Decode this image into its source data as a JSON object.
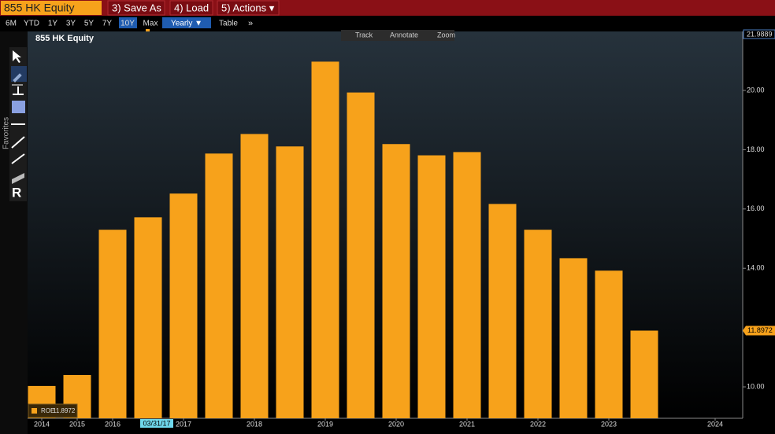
{
  "toolbar": {
    "ticker": "855 HK Equity",
    "buttons": [
      "3) Save As",
      "4) Load",
      "5) Actions ▾"
    ]
  },
  "periods": [
    "6M",
    "YTD",
    "1Y",
    "3Y",
    "5Y",
    "7Y",
    "10Y",
    "Max"
  ],
  "controls": {
    "frequency": "Yearly ▼",
    "table": "Table",
    "more": "»"
  },
  "chart_tools": [
    "Track",
    "Annotate",
    "Zoom"
  ],
  "side_panel": {
    "favorites": "Favorites",
    "tool_r": "R"
  },
  "cursor_date": "03/31/17",
  "chart_data": {
    "type": "bar",
    "title": "855 HK Equity",
    "categories": [
      "2014",
      "2015",
      "2016",
      null,
      "2017",
      null,
      "2018",
      null,
      "2019",
      null,
      "2020",
      null,
      "2021",
      null,
      "2022",
      null,
      "2023",
      null,
      null,
      "2024"
    ],
    "series": [
      {
        "name": "ROE",
        "color": "#f7a21b",
        "values": [
          10.03,
          10.4,
          15.3,
          15.72,
          16.52,
          17.87,
          18.53,
          18.11,
          20.97,
          19.93,
          18.19,
          17.81,
          17.92,
          16.17,
          15.3,
          14.34,
          13.92,
          11.8972,
          null,
          null
        ]
      }
    ],
    "ylim": [
      8.94,
      21.9889
    ],
    "yticks": [
      {
        "value": 10,
        "label": "10.00"
      },
      {
        "value": 14,
        "label": "14.00"
      },
      {
        "value": 16,
        "label": "16.00"
      },
      {
        "value": 18,
        "label": "18.00"
      },
      {
        "value": 20,
        "label": "20.00"
      },
      21.9889
    ],
    "y_axis_side": "right",
    "grid": false,
    "legend": "lower left"
  }
}
